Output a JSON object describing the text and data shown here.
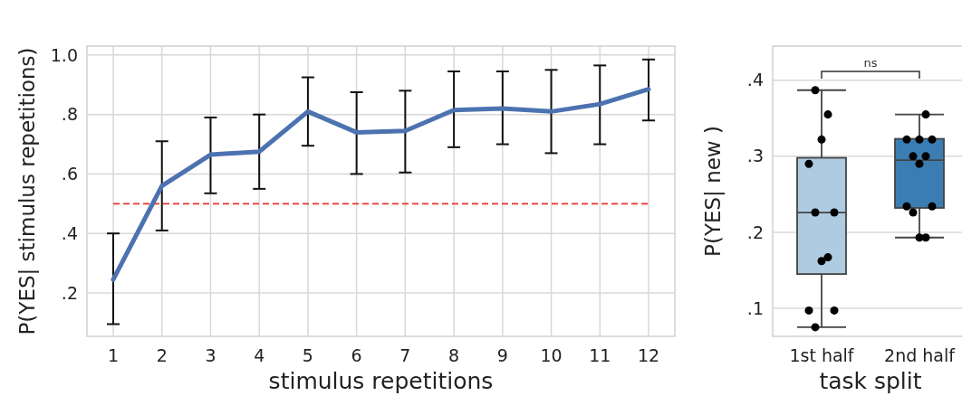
{
  "chart_data": [
    {
      "type": "line",
      "xlabel": "stimulus repetitions",
      "ylabel": "P(YES| stimulus repetitions)",
      "x": [
        1,
        2,
        3,
        4,
        5,
        6,
        7,
        8,
        9,
        10,
        11,
        12
      ],
      "series": [
        {
          "color": "#4c72b0",
          "values": [
            0.245,
            0.56,
            0.665,
            0.675,
            0.81,
            0.74,
            0.745,
            0.815,
            0.82,
            0.81,
            0.835,
            0.885
          ],
          "errors": [
            [
              0.095,
              0.4
            ],
            [
              0.41,
              0.71
            ],
            [
              0.535,
              0.79
            ],
            [
              0.55,
              0.8
            ],
            [
              0.695,
              0.925
            ],
            [
              0.6,
              0.875
            ],
            [
              0.605,
              0.88
            ],
            [
              0.69,
              0.945
            ],
            [
              0.7,
              0.945
            ],
            [
              0.67,
              0.95
            ],
            [
              0.7,
              0.965
            ],
            [
              0.78,
              0.985
            ]
          ]
        }
      ],
      "xlim": [
        0.46,
        12.54
      ],
      "xticks": [
        1,
        2,
        3,
        4,
        5,
        6,
        7,
        8,
        9,
        10,
        11,
        12
      ],
      "ylim": [
        0.054,
        1.03
      ],
      "yticks": [
        {
          "value": 0.2,
          "label": ".2"
        },
        {
          "value": 0.4,
          "label": ".4"
        },
        {
          "value": 0.6,
          "label": ".6"
        },
        {
          "value": 0.8,
          "label": ".8"
        },
        {
          "value": 1.0,
          "label": "1.0"
        }
      ],
      "ref_lines": [
        {
          "axis": "y",
          "value": 0.5,
          "color": "#e8302a",
          "line_style": "dashed"
        }
      ],
      "grid": true
    },
    {
      "type": "box",
      "xlabel": "task split",
      "ylabel": "P(YES| new )",
      "categories": [
        "1st half",
        "2nd half"
      ],
      "colors": [
        "#aecbe2",
        "#3a7db3"
      ],
      "boxes": [
        {
          "low": 0.075,
          "q1": 0.145,
          "median": 0.226,
          "q3": 0.298,
          "high": 0.387
        },
        {
          "low": 0.193,
          "q1": 0.232,
          "median": 0.295,
          "q3": 0.323,
          "high": 0.355
        }
      ],
      "series": [
        {
          "type": "scatter",
          "color": "#000000",
          "x": [
            "1st half",
            "1st half",
            "1st half",
            "1st half",
            "1st half",
            "1st half",
            "1st half",
            "1st half",
            "1st half",
            "1st half",
            "1st half",
            "2nd half",
            "2nd half",
            "2nd half",
            "2nd half",
            "2nd half",
            "2nd half",
            "2nd half",
            "2nd half",
            "2nd half",
            "2nd half",
            "2nd half",
            "2nd half"
          ],
          "values": [
            0.387,
            0.355,
            0.322,
            0.29,
            0.226,
            0.226,
            0.167,
            0.162,
            0.097,
            0.097,
            0.075,
            0.355,
            0.322,
            0.322,
            0.322,
            0.3,
            0.3,
            0.29,
            0.234,
            0.234,
            0.226,
            0.193,
            0.193
          ]
        }
      ],
      "ylim": [
        0.063,
        0.445
      ],
      "yticks": [
        {
          "value": 0.1,
          "label": ".1"
        },
        {
          "value": 0.2,
          "label": ".2"
        },
        {
          "value": 0.3,
          "label": ".3"
        },
        {
          "value": 0.4,
          "label": ".4"
        }
      ],
      "annotations": [
        "ns"
      ],
      "grid": "y",
      "marker": "circle"
    }
  ]
}
